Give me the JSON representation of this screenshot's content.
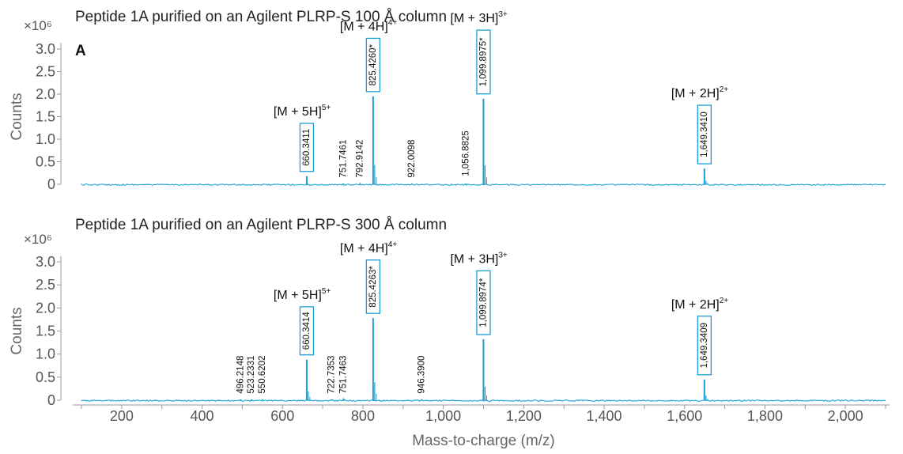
{
  "x_axis_label": "Mass-to-charge (m/z)",
  "colors": {
    "trace": "#1a9fd6",
    "box": "#1a9fd6",
    "axis": "#999999"
  },
  "chart_data": [
    {
      "type": "line",
      "title": "Peptide 1A purified on an Agilent PLRP-S 100 Å column",
      "panel_label": "A",
      "y_scale_label": "×10⁶",
      "ylabel": "Counts",
      "xlim": [
        100,
        2100
      ],
      "ylim": [
        0,
        3.0
      ],
      "y_ticks": [
        "0",
        "0.5",
        "1.0",
        "1.5",
        "2.0",
        "2.5",
        "3.0"
      ],
      "peaks": [
        {
          "mz": 660.3411,
          "label": "660.3411",
          "height": 0.18,
          "boxed": true
        },
        {
          "mz": 751.7461,
          "label": "751.7461",
          "height": 0.02,
          "boxed": false
        },
        {
          "mz": 792.9142,
          "label": "792.9142",
          "height": 0.03,
          "boxed": false
        },
        {
          "mz": 825.426,
          "label": "825.4260*",
          "height": 1.95,
          "boxed": true
        },
        {
          "mz": 922.0098,
          "label": "922.0098",
          "height": 0.02,
          "boxed": false
        },
        {
          "mz": 1056.8825,
          "label": "1,056.8825",
          "height": 0.02,
          "boxed": false
        },
        {
          "mz": 1099.8975,
          "label": "1,099.8975*",
          "height": 1.9,
          "boxed": true
        },
        {
          "mz": 1649.341,
          "label": "1,649.3410",
          "height": 0.35,
          "boxed": true
        }
      ],
      "ion_labels": [
        {
          "mz": 660.3411,
          "text": "[M + 5H]",
          "charge": "5+"
        },
        {
          "mz": 825.426,
          "text": "[M + 4H]",
          "charge": "4+"
        },
        {
          "mz": 1099.8975,
          "text": "[M + 3H]",
          "charge": "3+"
        },
        {
          "mz": 1649.341,
          "text": "[M + 2H]",
          "charge": "2+"
        }
      ]
    },
    {
      "type": "line",
      "title": "Peptide 1A purified on an Agilent PLRP-S 300 Å column",
      "y_scale_label": "×10⁶",
      "ylabel": "Counts",
      "xlim": [
        100,
        2100
      ],
      "ylim": [
        0,
        3.0
      ],
      "y_ticks": [
        "0",
        "0.5",
        "1.0",
        "1.5",
        "2.0",
        "2.5",
        "3.0"
      ],
      "x_ticks": [
        "200",
        "400",
        "600",
        "800",
        "1,000",
        "1,200",
        "1,400",
        "1,600",
        "1,800",
        "2,000"
      ],
      "peaks": [
        {
          "mz": 496.2148,
          "label": "496.2148",
          "height": 0.02,
          "boxed": false
        },
        {
          "mz": 523.2331,
          "label": "523.2331",
          "height": 0.02,
          "boxed": false
        },
        {
          "mz": 550.6202,
          "label": "550.6202",
          "height": 0.02,
          "boxed": false
        },
        {
          "mz": 660.3414,
          "label": "660.3414",
          "height": 0.88,
          "boxed": true
        },
        {
          "mz": 722.7353,
          "label": "722.7353",
          "height": 0.02,
          "boxed": false
        },
        {
          "mz": 751.7463,
          "label": "751.7463",
          "height": 0.04,
          "boxed": false
        },
        {
          "mz": 825.4263,
          "label": "825.4263*",
          "height": 1.78,
          "boxed": true
        },
        {
          "mz": 946.39,
          "label": "946.3900",
          "height": 0.02,
          "boxed": false
        },
        {
          "mz": 1099.8974,
          "label": "1,099.8974*",
          "height": 1.32,
          "boxed": true
        },
        {
          "mz": 1649.3409,
          "label": "1,649.3409",
          "height": 0.45,
          "boxed": true
        }
      ],
      "ion_labels": [
        {
          "mz": 660.3414,
          "text": "[M + 5H]",
          "charge": "5+"
        },
        {
          "mz": 825.4263,
          "text": "[M + 4H]",
          "charge": "4+"
        },
        {
          "mz": 1099.8974,
          "text": "[M + 3H]",
          "charge": "3+"
        },
        {
          "mz": 1649.3409,
          "text": "[M + 2H]",
          "charge": "2+"
        }
      ]
    }
  ]
}
